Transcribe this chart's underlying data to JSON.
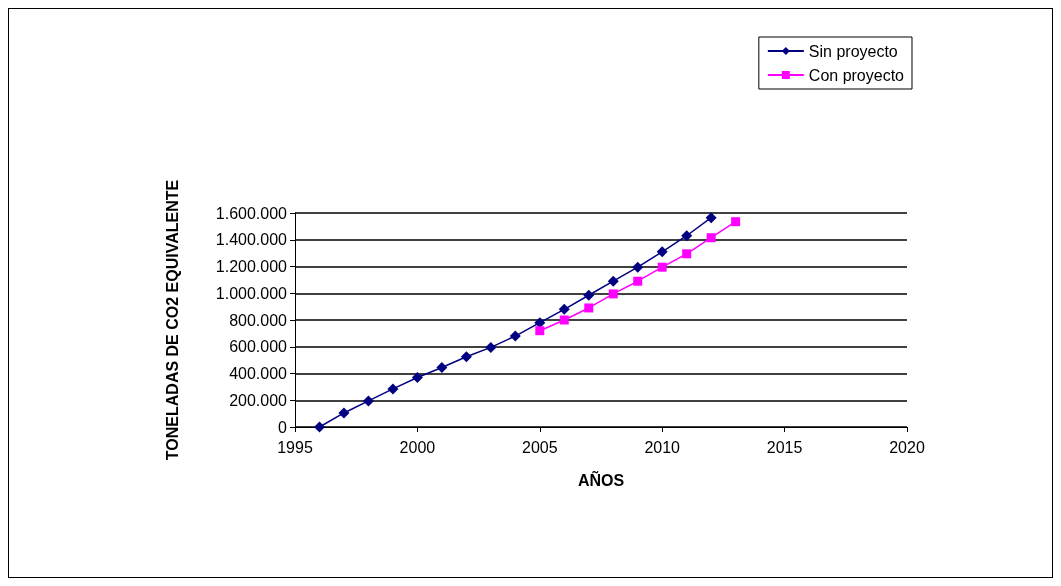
{
  "chart_data": {
    "type": "line",
    "xlabel": "AÑOS",
    "ylabel": "TONELADAS DE CO2 EQUIVALENTE",
    "xlim": [
      1995,
      2020
    ],
    "xticks": [
      1995,
      2000,
      2005,
      2010,
      2015,
      2020
    ],
    "ylim": [
      0,
      1600000
    ],
    "yticks": [
      0,
      {
        "value": 200000,
        "label": "200.000"
      },
      {
        "value": 400000,
        "label": "400.000"
      },
      {
        "value": 600000,
        "label": "600.000"
      },
      {
        "value": 800000,
        "label": "800.000"
      },
      {
        "value": 1000000,
        "label": "1.000.000"
      },
      {
        "value": 1200000,
        "label": "1.200.000"
      },
      {
        "value": 1400000,
        "label": "1.400.000"
      },
      {
        "value": 1600000,
        "label": "1.600.000"
      }
    ],
    "grid": "y",
    "legend": "top right",
    "series": [
      {
        "name": "Sin proyecto",
        "color": "#000080",
        "marker": "diamond",
        "x": [
          1996,
          1997,
          1998,
          1999,
          2000,
          2001,
          2002,
          2003,
          2004,
          2005,
          2006,
          2007,
          2008,
          2009,
          2010,
          2011,
          2012
        ],
        "values": [
          0,
          105000,
          195000,
          285000,
          370000,
          445000,
          525000,
          595000,
          680000,
          780000,
          880000,
          985000,
          1090000,
          1195000,
          1310000,
          1430000,
          1565000
        ]
      },
      {
        "name": "Con proyecto",
        "color": "#ff00ff",
        "marker": "square",
        "x": [
          2005,
          2006,
          2007,
          2008,
          2009,
          2010,
          2011,
          2012,
          2013
        ],
        "values": [
          720000,
          800000,
          890000,
          995000,
          1090000,
          1195000,
          1295000,
          1415000,
          1535000
        ]
      }
    ]
  }
}
